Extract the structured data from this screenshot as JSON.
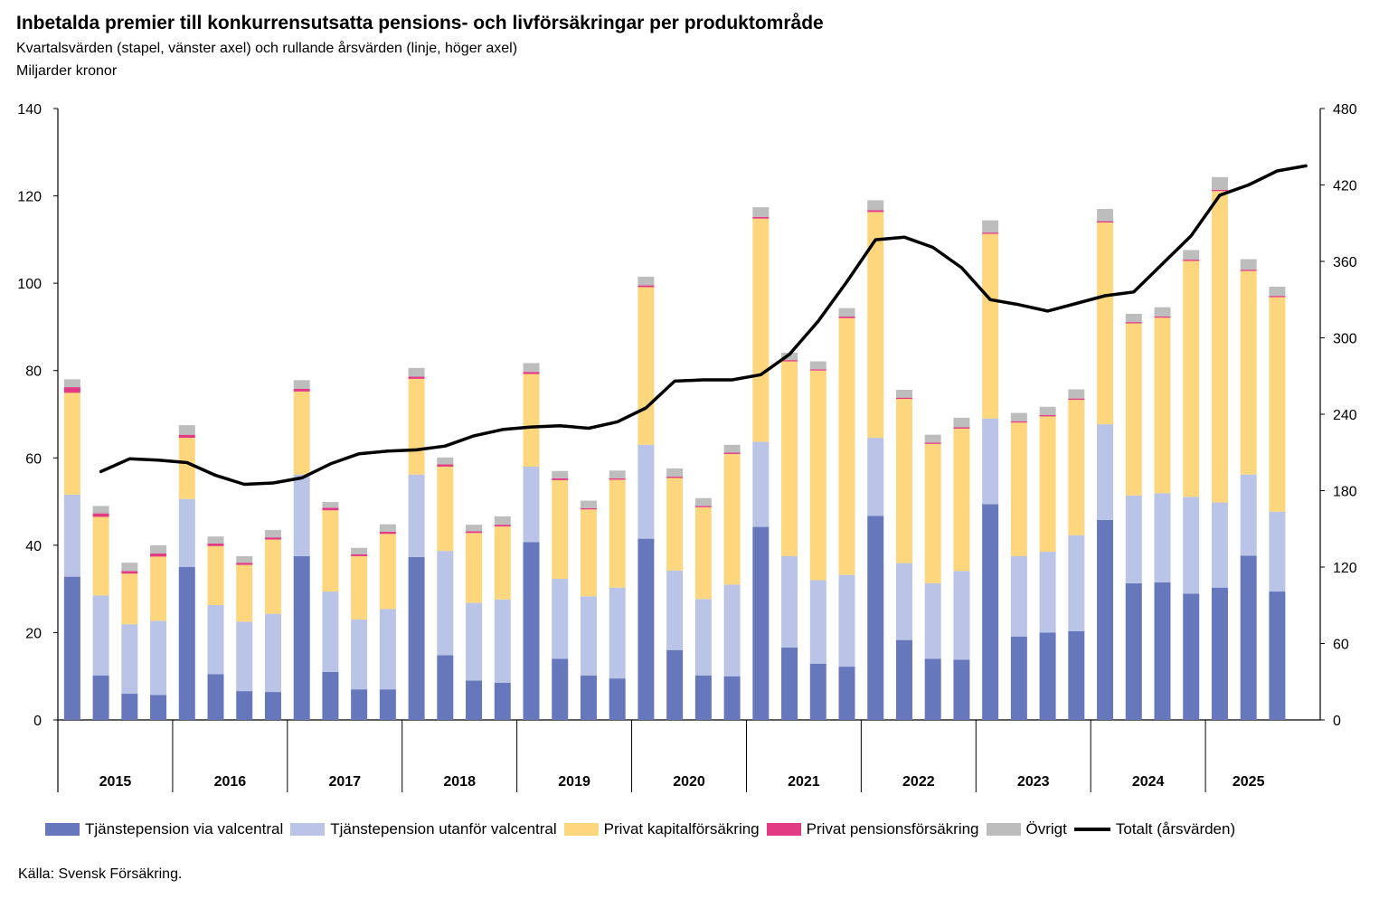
{
  "header": {
    "title": "Inbetalda premier till konkurrensutsatta pensions- och livförsäkringar per produktområde",
    "subtitle": "Kvartalsvärden (stapel, vänster axel) och rullande årsvärden (linje, höger axel)",
    "unit": "Miljarder kronor"
  },
  "source": "Källa: Svensk Försäkring.",
  "colors": {
    "valcentral": "#6677bb",
    "utanfor": "#b9c4e6",
    "kapital": "#fed67e",
    "pension": "#e33b83",
    "ovrigt": "#bdbdbd",
    "total": "#000000"
  },
  "chart_data": {
    "type": "bar",
    "stacked": true,
    "title": "Inbetalda premier till konkurrensutsatta pensions- och livförsäkringar per produktområde",
    "y_left": {
      "min": 0,
      "max": 140,
      "ticks": [
        0,
        20,
        40,
        60,
        80,
        100,
        120,
        140
      ],
      "label": "Miljarder kronor"
    },
    "y_right": {
      "min": 0,
      "max": 480,
      "ticks": [
        0,
        60,
        120,
        180,
        240,
        300,
        360,
        420,
        480
      ]
    },
    "years": [
      "2015",
      "2016",
      "2017",
      "2018",
      "2019",
      "2020",
      "2021",
      "2022",
      "2023",
      "2024",
      "2025"
    ],
    "quarters_per_year": [
      4,
      4,
      4,
      4,
      4,
      4,
      4,
      4,
      4,
      4,
      3
    ],
    "series": [
      {
        "name": "Tjänstepension via valcentral",
        "key": "valcentral",
        "values": [
          32.8,
          10.2,
          6.0,
          5.7,
          35.0,
          10.5,
          6.6,
          6.4,
          37.5,
          11.0,
          7.0,
          7.0,
          37.3,
          14.8,
          9.0,
          8.5,
          40.7,
          14.0,
          10.2,
          9.5,
          41.5,
          16.0,
          10.2,
          10.0,
          44.2,
          16.6,
          12.9,
          12.2,
          46.7,
          18.3,
          14.0,
          13.8,
          49.4,
          19.1,
          20.0,
          20.3,
          45.8,
          31.3,
          31.5,
          28.9,
          30.3,
          37.6,
          29.4
        ]
      },
      {
        "name": "Tjänstepension utanför valcentral",
        "key": "utanfor",
        "values": [
          18.8,
          18.3,
          15.9,
          17.0,
          15.6,
          15.8,
          15.9,
          17.9,
          18.7,
          18.4,
          16.0,
          18.4,
          18.9,
          23.9,
          17.8,
          19.1,
          17.3,
          18.3,
          18.1,
          20.8,
          21.5,
          18.2,
          17.5,
          21.0,
          19.5,
          20.9,
          19.1,
          21.0,
          17.9,
          17.6,
          17.3,
          20.3,
          19.6,
          18.4,
          18.5,
          22.0,
          21.9,
          20.1,
          20.4,
          22.2,
          19.5,
          18.6,
          18.3
        ]
      },
      {
        "name": "Privat kapitalförsäkring",
        "key": "kapital",
        "values": [
          23.3,
          18.0,
          11.6,
          14.7,
          14.0,
          13.5,
          13.0,
          17.0,
          19.0,
          18.6,
          14.5,
          17.2,
          21.9,
          19.3,
          16.0,
          16.7,
          21.2,
          22.6,
          19.9,
          24.7,
          36.1,
          21.2,
          21.0,
          29.9,
          51.1,
          44.6,
          48.0,
          58.8,
          51.7,
          37.6,
          31.9,
          32.6,
          42.3,
          30.6,
          31.0,
          31.0,
          46.2,
          39.4,
          40.2,
          54.0,
          71.3,
          46.6,
          49.1
        ]
      },
      {
        "name": "Privat pensionsförsäkring",
        "key": "pension",
        "values": [
          1.3,
          0.8,
          0.6,
          0.7,
          0.7,
          0.6,
          0.5,
          0.5,
          0.6,
          0.6,
          0.4,
          0.5,
          0.5,
          0.5,
          0.4,
          0.4,
          0.5,
          0.4,
          0.3,
          0.3,
          0.4,
          0.3,
          0.3,
          0.3,
          0.4,
          0.3,
          0.3,
          0.4,
          0.4,
          0.3,
          0.3,
          0.3,
          0.3,
          0.3,
          0.3,
          0.3,
          0.3,
          0.3,
          0.3,
          0.3,
          0.3,
          0.3,
          0.3
        ]
      },
      {
        "name": "Övrigt",
        "key": "ovrigt",
        "values": [
          1.8,
          1.7,
          1.9,
          1.9,
          2.2,
          1.6,
          1.5,
          1.7,
          2.0,
          1.3,
          1.5,
          1.7,
          2.0,
          1.6,
          1.5,
          1.9,
          2.0,
          1.7,
          1.7,
          1.8,
          2.0,
          1.9,
          1.8,
          1.8,
          2.2,
          1.7,
          1.8,
          1.9,
          2.3,
          1.8,
          1.8,
          2.2,
          2.8,
          1.9,
          1.9,
          2.1,
          2.8,
          1.9,
          2.1,
          2.2,
          2.9,
          2.4,
          2.1
        ]
      }
    ],
    "line": {
      "name": "Totalt (årsvärden)",
      "axis": "right",
      "start_index": 1,
      "values": [
        195,
        205,
        204,
        202,
        192,
        185,
        186,
        190,
        201,
        209,
        211,
        212,
        215,
        223,
        228,
        230,
        231,
        229,
        234,
        245,
        266,
        267,
        267,
        271,
        287,
        313,
        344,
        377,
        379,
        371,
        355,
        330,
        326,
        321,
        327,
        333,
        336,
        358,
        380,
        412,
        420,
        431,
        435
      ]
    },
    "legend_position": "bottom"
  }
}
